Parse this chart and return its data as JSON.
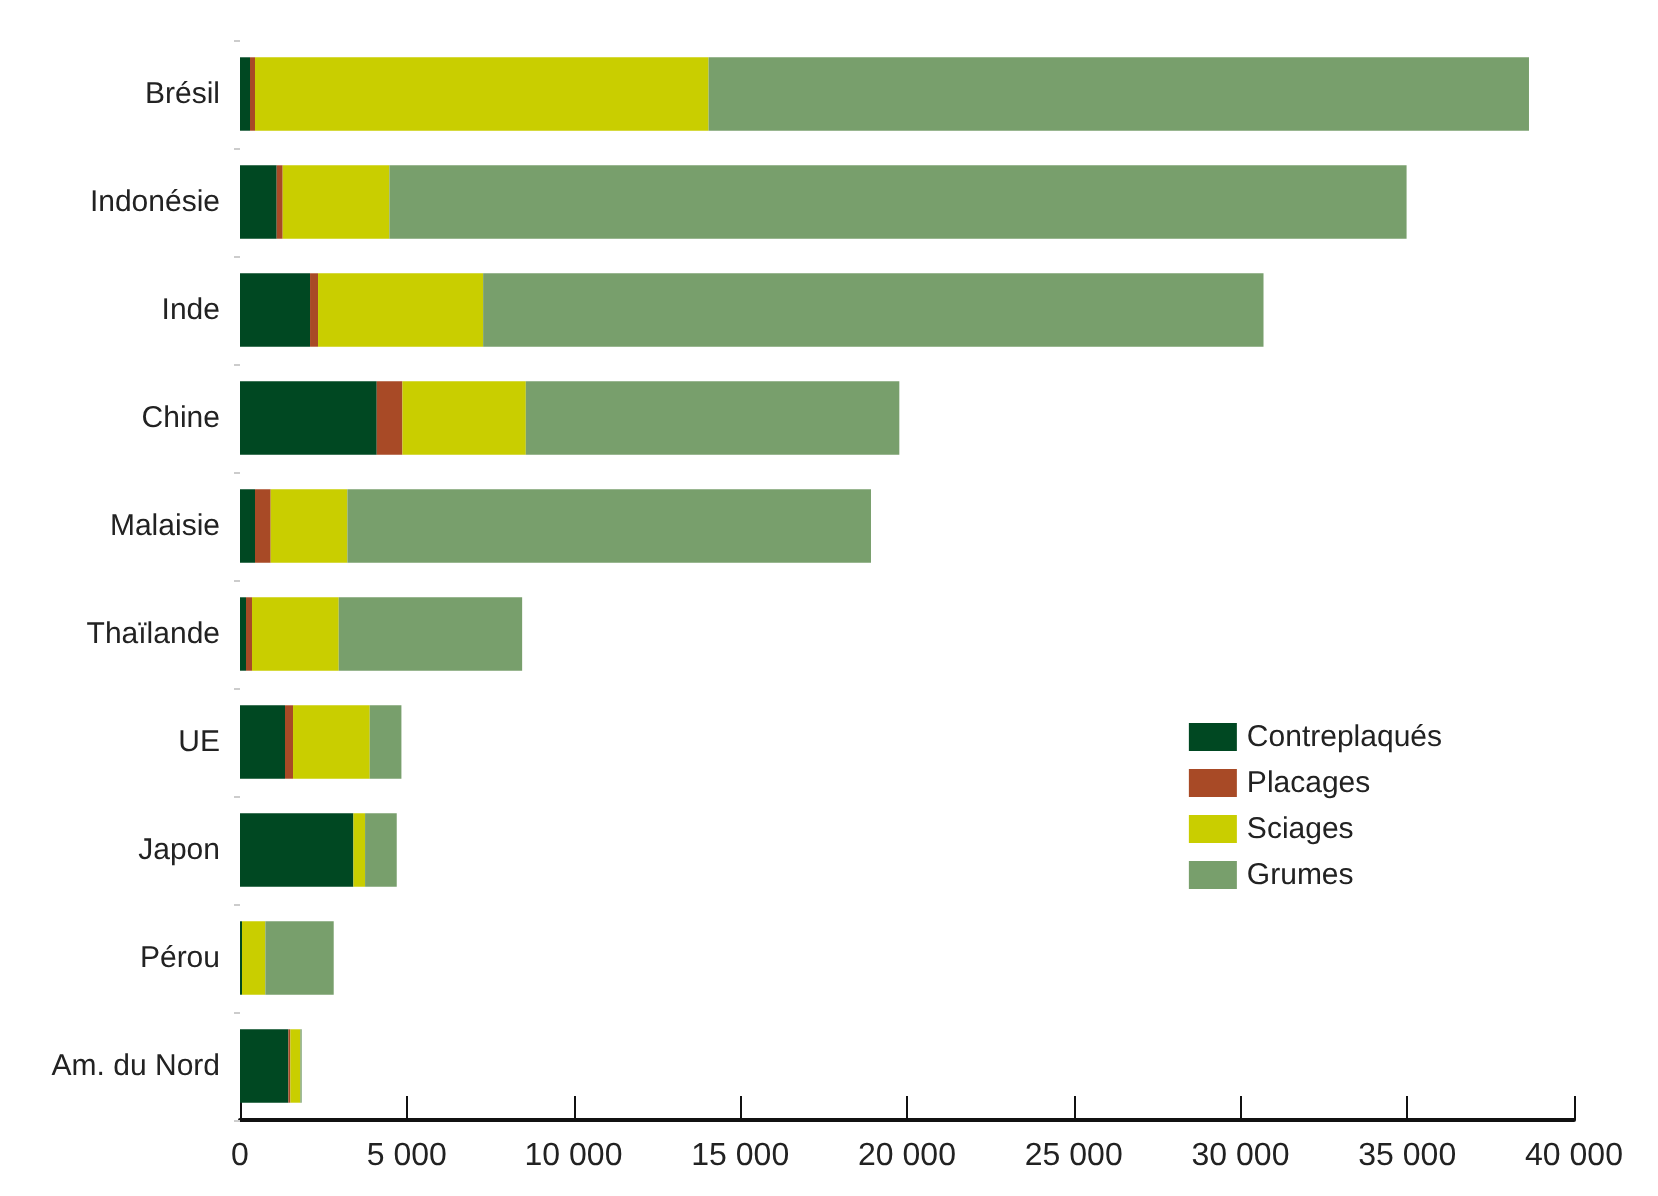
{
  "chart_data": {
    "type": "bar",
    "orientation": "horizontal",
    "stacked": true,
    "categories": [
      "Brésil",
      "Indonésie",
      "Inde",
      "Chine",
      "Malaisie",
      "Thaïlande",
      "UE",
      "Japon",
      "Pérou",
      "Am. du Nord"
    ],
    "series": [
      {
        "name": "Contreplaqués",
        "color": "#004822",
        "values": [
          300,
          1100,
          2100,
          4100,
          450,
          180,
          1350,
          3400,
          60,
          1450
        ]
      },
      {
        "name": "Placages",
        "color": "#a84a26",
        "values": [
          150,
          180,
          240,
          770,
          470,
          180,
          240,
          0,
          0,
          60
        ]
      },
      {
        "name": "Sciages",
        "color": "#c9ce00",
        "values": [
          13600,
          3200,
          4950,
          3700,
          2300,
          2600,
          2300,
          350,
          700,
          300
        ]
      },
      {
        "name": "Grumes",
        "color": "#789f6c",
        "values": [
          24600,
          30500,
          23400,
          11200,
          15700,
          5500,
          950,
          950,
          2050,
          40
        ]
      }
    ],
    "xlim": [
      0,
      40000
    ],
    "xticks": [
      0,
      {
        "value": 5000,
        "label": "5 000"
      },
      {
        "value": 10000,
        "label": "10 000"
      },
      {
        "value": 15000,
        "label": "15 000"
      },
      {
        "value": 20000,
        "label": "20 000"
      },
      {
        "value": 25000,
        "label": "25 000"
      },
      {
        "value": 30000,
        "label": "30 000"
      },
      {
        "value": 35000,
        "label": "35 000"
      },
      {
        "value": 40000,
        "label": "40 000"
      }
    ],
    "grid": false,
    "legend": "bottom right"
  }
}
